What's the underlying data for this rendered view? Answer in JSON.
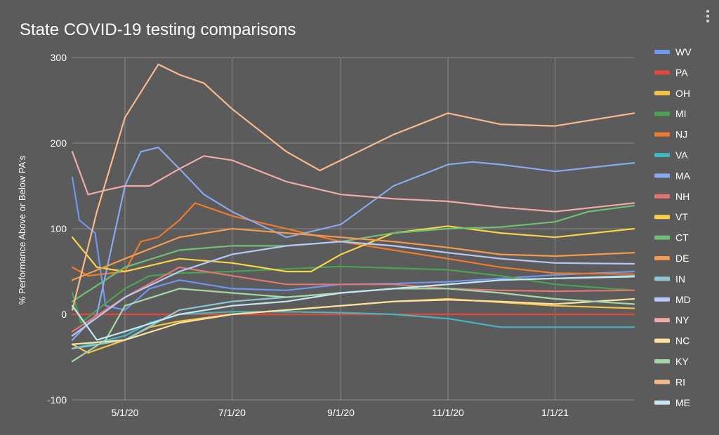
{
  "chart_data": {
    "type": "line",
    "title": "State COVID-19 testing comparisons",
    "xlabel": "",
    "ylabel": "% Performance Above or Below PA's",
    "ylim": [
      -100,
      300
    ],
    "xlim": [
      "2020-04-01",
      "2021-02-15"
    ],
    "yticks": [
      -100,
      0,
      100,
      200,
      300
    ],
    "ytick_labels": [
      "-100",
      "0",
      "100",
      "200",
      "300"
    ],
    "xticks": [
      "2020-05-01",
      "2020-07-01",
      "2020-09-01",
      "2020-11-01",
      "2021-01-01"
    ],
    "xtick_labels": [
      "5/1/20",
      "7/1/20",
      "9/1/20",
      "11/1/20",
      "1/1/21"
    ],
    "grid": true,
    "legend": "right",
    "series": [
      {
        "name": "WV",
        "color": "#6f96f0",
        "points": [
          [
            "2020-04-01",
            160
          ],
          [
            "2020-04-05",
            110
          ],
          [
            "2020-04-14",
            95
          ],
          [
            "2020-04-20",
            10
          ],
          [
            "2020-05-01",
            5
          ],
          [
            "2020-05-15",
            30
          ],
          [
            "2020-06-01",
            40
          ],
          [
            "2020-07-01",
            30
          ],
          [
            "2020-08-01",
            28
          ],
          [
            "2020-09-01",
            35
          ],
          [
            "2020-10-01",
            36
          ],
          [
            "2020-11-01",
            38
          ],
          [
            "2020-12-01",
            42
          ],
          [
            "2021-01-01",
            46
          ],
          [
            "2021-02-15",
            50
          ]
        ]
      },
      {
        "name": "PA",
        "color": "#e0483d",
        "points": [
          [
            "2020-04-01",
            0
          ],
          [
            "2021-02-15",
            0
          ]
        ]
      },
      {
        "name": "OH",
        "color": "#f6c343",
        "points": [
          [
            "2020-04-01",
            -35
          ],
          [
            "2020-04-10",
            -45
          ],
          [
            "2020-05-01",
            -30
          ],
          [
            "2020-05-15",
            -15
          ],
          [
            "2020-06-01",
            -8
          ],
          [
            "2020-07-01",
            0
          ],
          [
            "2020-08-01",
            5
          ],
          [
            "2020-09-01",
            10
          ],
          [
            "2020-10-01",
            15
          ],
          [
            "2020-11-01",
            18
          ],
          [
            "2020-12-01",
            14
          ],
          [
            "2021-01-01",
            10
          ],
          [
            "2021-02-15",
            7
          ]
        ]
      },
      {
        "name": "MI",
        "color": "#4aa34f",
        "points": [
          [
            "2020-04-01",
            25
          ],
          [
            "2020-04-06",
            -10
          ],
          [
            "2020-04-15",
            5
          ],
          [
            "2020-05-01",
            30
          ],
          [
            "2020-05-15",
            45
          ],
          [
            "2020-06-01",
            48
          ],
          [
            "2020-07-01",
            50
          ],
          [
            "2020-08-01",
            53
          ],
          [
            "2020-09-01",
            56
          ],
          [
            "2020-10-01",
            54
          ],
          [
            "2020-11-01",
            52
          ],
          [
            "2020-12-01",
            45
          ],
          [
            "2021-01-01",
            35
          ],
          [
            "2021-02-15",
            28
          ]
        ]
      },
      {
        "name": "NJ",
        "color": "#ee7a2a",
        "points": [
          [
            "2020-04-01",
            55
          ],
          [
            "2020-04-10",
            45
          ],
          [
            "2020-05-01",
            50
          ],
          [
            "2020-05-10",
            85
          ],
          [
            "2020-05-20",
            90
          ],
          [
            "2020-06-01",
            110
          ],
          [
            "2020-06-10",
            130
          ],
          [
            "2020-07-01",
            115
          ],
          [
            "2020-08-01",
            100
          ],
          [
            "2020-09-01",
            85
          ],
          [
            "2020-10-01",
            75
          ],
          [
            "2020-11-01",
            65
          ],
          [
            "2020-12-01",
            55
          ],
          [
            "2021-01-01",
            48
          ],
          [
            "2021-02-15",
            47
          ]
        ]
      },
      {
        "name": "VA",
        "color": "#42b6c0",
        "points": [
          [
            "2020-04-01",
            -40
          ],
          [
            "2020-05-01",
            -25
          ],
          [
            "2020-05-15",
            -10
          ],
          [
            "2020-06-01",
            0
          ],
          [
            "2020-07-01",
            3
          ],
          [
            "2020-08-01",
            3
          ],
          [
            "2020-09-01",
            2
          ],
          [
            "2020-10-01",
            0
          ],
          [
            "2020-11-01",
            -5
          ],
          [
            "2020-12-01",
            -15
          ],
          [
            "2021-01-01",
            -15
          ],
          [
            "2021-02-15",
            -15
          ]
        ]
      },
      {
        "name": "MA",
        "color": "#8aa8ee",
        "points": [
          [
            "2020-04-01",
            -30
          ],
          [
            "2020-04-15",
            0
          ],
          [
            "2020-05-01",
            150
          ],
          [
            "2020-05-10",
            190
          ],
          [
            "2020-05-20",
            195
          ],
          [
            "2020-06-01",
            170
          ],
          [
            "2020-06-15",
            140
          ],
          [
            "2020-07-01",
            120
          ],
          [
            "2020-08-01",
            90
          ],
          [
            "2020-09-01",
            105
          ],
          [
            "2020-10-01",
            150
          ],
          [
            "2020-11-01",
            175
          ],
          [
            "2020-11-15",
            178
          ],
          [
            "2020-12-01",
            175
          ],
          [
            "2021-01-01",
            167
          ],
          [
            "2021-02-15",
            177
          ]
        ]
      },
      {
        "name": "NH",
        "color": "#e07572",
        "points": [
          [
            "2020-04-01",
            -20
          ],
          [
            "2020-05-01",
            20
          ],
          [
            "2020-06-01",
            55
          ],
          [
            "2020-07-01",
            45
          ],
          [
            "2020-08-01",
            35
          ],
          [
            "2020-09-01",
            35
          ],
          [
            "2020-10-01",
            35
          ],
          [
            "2020-11-01",
            30
          ],
          [
            "2020-12-01",
            28
          ],
          [
            "2021-01-01",
            27
          ],
          [
            "2021-02-15",
            28
          ]
        ]
      },
      {
        "name": "VT",
        "color": "#f8d34a",
        "points": [
          [
            "2020-04-01",
            90
          ],
          [
            "2020-04-15",
            55
          ],
          [
            "2020-05-01",
            50
          ],
          [
            "2020-06-01",
            65
          ],
          [
            "2020-07-01",
            60
          ],
          [
            "2020-08-01",
            50
          ],
          [
            "2020-08-15",
            50
          ],
          [
            "2020-09-01",
            70
          ],
          [
            "2020-10-01",
            95
          ],
          [
            "2020-11-01",
            103
          ],
          [
            "2020-12-01",
            95
          ],
          [
            "2021-01-01",
            90
          ],
          [
            "2021-02-15",
            100
          ]
        ]
      },
      {
        "name": "CT",
        "color": "#6fbf73",
        "points": [
          [
            "2020-04-01",
            15
          ],
          [
            "2020-05-01",
            55
          ],
          [
            "2020-06-01",
            75
          ],
          [
            "2020-07-01",
            80
          ],
          [
            "2020-08-01",
            80
          ],
          [
            "2020-09-01",
            85
          ],
          [
            "2020-10-01",
            95
          ],
          [
            "2020-11-01",
            100
          ],
          [
            "2020-12-01",
            102
          ],
          [
            "2021-01-01",
            108
          ],
          [
            "2021-01-20",
            120
          ],
          [
            "2021-02-15",
            127
          ]
        ]
      },
      {
        "name": "DE",
        "color": "#f29a4e",
        "points": [
          [
            "2020-04-01",
            40
          ],
          [
            "2020-05-01",
            65
          ],
          [
            "2020-06-01",
            90
          ],
          [
            "2020-07-01",
            100
          ],
          [
            "2020-08-01",
            95
          ],
          [
            "2020-09-01",
            90
          ],
          [
            "2020-10-01",
            85
          ],
          [
            "2020-11-01",
            78
          ],
          [
            "2020-12-01",
            70
          ],
          [
            "2021-01-01",
            68
          ],
          [
            "2021-02-15",
            72
          ]
        ]
      },
      {
        "name": "IN",
        "color": "#8ec6d6",
        "points": [
          [
            "2020-04-01",
            -40
          ],
          [
            "2020-05-01",
            -30
          ],
          [
            "2020-06-01",
            5
          ],
          [
            "2020-07-01",
            15
          ],
          [
            "2020-08-01",
            20
          ],
          [
            "2020-09-01",
            25
          ],
          [
            "2020-10-01",
            30
          ],
          [
            "2020-11-01",
            35
          ],
          [
            "2020-12-01",
            40
          ],
          [
            "2021-01-01",
            42
          ],
          [
            "2021-02-15",
            45
          ]
        ]
      },
      {
        "name": "MD",
        "color": "#b8c8f4",
        "points": [
          [
            "2020-04-01",
            -25
          ],
          [
            "2020-05-01",
            20
          ],
          [
            "2020-06-01",
            50
          ],
          [
            "2020-07-01",
            70
          ],
          [
            "2020-08-01",
            80
          ],
          [
            "2020-09-01",
            85
          ],
          [
            "2020-10-01",
            80
          ],
          [
            "2020-11-01",
            72
          ],
          [
            "2020-12-01",
            65
          ],
          [
            "2021-01-01",
            60
          ],
          [
            "2021-02-15",
            59
          ]
        ]
      },
      {
        "name": "NY",
        "color": "#f0aaa8",
        "points": [
          [
            "2020-04-01",
            190
          ],
          [
            "2020-04-10",
            140
          ],
          [
            "2020-04-20",
            145
          ],
          [
            "2020-05-01",
            150
          ],
          [
            "2020-05-15",
            150
          ],
          [
            "2020-06-01",
            170
          ],
          [
            "2020-06-15",
            185
          ],
          [
            "2020-07-01",
            180
          ],
          [
            "2020-08-01",
            155
          ],
          [
            "2020-09-01",
            140
          ],
          [
            "2020-10-01",
            135
          ],
          [
            "2020-11-01",
            132
          ],
          [
            "2020-12-01",
            125
          ],
          [
            "2021-01-01",
            120
          ],
          [
            "2021-02-15",
            130
          ]
        ]
      },
      {
        "name": "NC",
        "color": "#fbe2a1",
        "points": [
          [
            "2020-04-01",
            -35
          ],
          [
            "2020-05-01",
            -30
          ],
          [
            "2020-06-01",
            -10
          ],
          [
            "2020-07-01",
            0
          ],
          [
            "2020-08-01",
            5
          ],
          [
            "2020-09-01",
            10
          ],
          [
            "2020-10-01",
            15
          ],
          [
            "2020-11-01",
            17
          ],
          [
            "2020-12-01",
            15
          ],
          [
            "2021-01-01",
            12
          ],
          [
            "2021-02-15",
            18
          ]
        ]
      },
      {
        "name": "KY",
        "color": "#a5d6a7",
        "points": [
          [
            "2020-04-01",
            -55
          ],
          [
            "2020-04-20",
            -30
          ],
          [
            "2020-05-01",
            10
          ],
          [
            "2020-06-01",
            30
          ],
          [
            "2020-07-01",
            25
          ],
          [
            "2020-08-01",
            20
          ],
          [
            "2020-09-01",
            25
          ],
          [
            "2020-10-01",
            30
          ],
          [
            "2020-11-01",
            30
          ],
          [
            "2020-12-01",
            25
          ],
          [
            "2021-01-01",
            18
          ],
          [
            "2021-02-15",
            12
          ]
        ]
      },
      {
        "name": "RI",
        "color": "#f6b98c",
        "points": [
          [
            "2020-04-01",
            5
          ],
          [
            "2020-04-15",
            120
          ],
          [
            "2020-05-01",
            230
          ],
          [
            "2020-05-20",
            292
          ],
          [
            "2020-06-01",
            280
          ],
          [
            "2020-06-15",
            270
          ],
          [
            "2020-07-01",
            240
          ],
          [
            "2020-08-01",
            190
          ],
          [
            "2020-08-20",
            168
          ],
          [
            "2020-09-01",
            180
          ],
          [
            "2020-10-01",
            210
          ],
          [
            "2020-11-01",
            235
          ],
          [
            "2020-12-01",
            222
          ],
          [
            "2021-01-01",
            220
          ],
          [
            "2021-02-15",
            235
          ]
        ]
      },
      {
        "name": "ME",
        "color": "#c4e6ef",
        "points": [
          [
            "2020-04-01",
            10
          ],
          [
            "2020-04-15",
            -30
          ],
          [
            "2020-05-01",
            -20
          ],
          [
            "2020-06-01",
            0
          ],
          [
            "2020-07-01",
            10
          ],
          [
            "2020-08-01",
            15
          ],
          [
            "2020-09-01",
            25
          ],
          [
            "2020-10-01",
            30
          ],
          [
            "2020-11-01",
            35
          ],
          [
            "2020-12-01",
            40
          ],
          [
            "2021-01-01",
            42
          ],
          [
            "2021-02-15",
            44
          ]
        ]
      }
    ]
  },
  "colors": {
    "background": "#5b5b5b",
    "grid": "#8a8a8a",
    "text": "#ffffff"
  },
  "menu": {
    "icon": "kebab-menu-icon"
  }
}
